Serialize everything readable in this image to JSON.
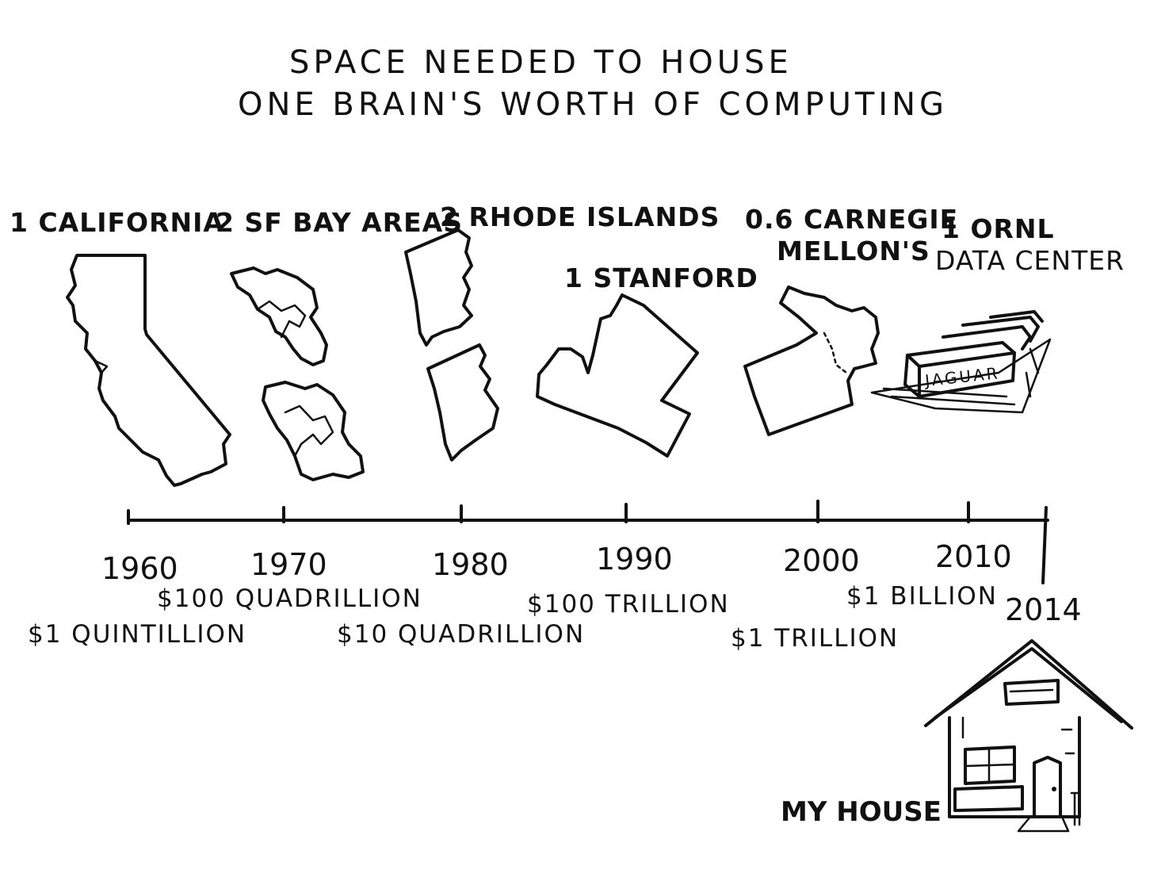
{
  "title": {
    "line1": "SPACE NEEDED TO HOUSE",
    "line2": "ONE BRAIN'S WORTH OF COMPUTING"
  },
  "places": [
    {
      "id": "california",
      "label": "1 CALIFORNIA"
    },
    {
      "id": "sf-bay",
      "label": "2 SF BAY AREAS"
    },
    {
      "id": "rhode-island",
      "label": "2 RHODE ISLANDS"
    },
    {
      "id": "stanford",
      "label": "1 STANFORD"
    },
    {
      "id": "cmu",
      "label_line1": "0.6 CARNEGIE",
      "label_line2": "MELLON'S"
    },
    {
      "id": "ornl",
      "label_line1": "1 ORNL",
      "label_line2": "DATA CENTER",
      "building_label": "JAGUAR"
    },
    {
      "id": "house",
      "label": "MY HOUSE"
    }
  ],
  "timeline": {
    "years": [
      "1960",
      "1970",
      "1980",
      "1990",
      "2000",
      "2010",
      "2014"
    ]
  },
  "costs": [
    {
      "id": "1960",
      "label": "$1 QUINTILLION"
    },
    {
      "id": "1970",
      "label": "$100 QUADRILLION"
    },
    {
      "id": "1980",
      "label": "$10 QUADRILLION"
    },
    {
      "id": "1990",
      "label": "$100 TRILLION"
    },
    {
      "id": "2000",
      "label": "$1 TRILLION"
    },
    {
      "id": "2010",
      "label": "$1 BILLION"
    }
  ]
}
